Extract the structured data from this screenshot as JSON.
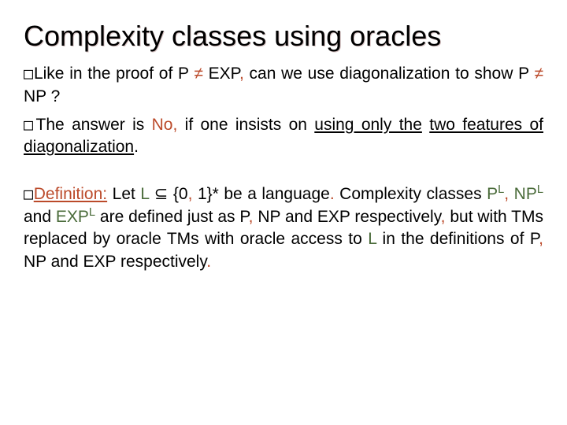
{
  "title": "Complexity classes using oracles",
  "p1": {
    "bullet": "□",
    "t1": "Like in the proof of P ",
    "neq1": "≠",
    "t2": " EXP",
    "comma1": ",",
    "t3": " can we use diagonalization to show P ",
    "neq2": "≠",
    "t4": " NP ?"
  },
  "p2": {
    "bullet": "□",
    "t1": "The answer is ",
    "no": "No",
    "comma": ",",
    "t2": " if one insists on ",
    "und1": "using only the",
    "t3": " ",
    "und2": "two features of diagonalization",
    "period": "."
  },
  "p3": {
    "bullet": "□",
    "def": "Definition:",
    "t1": " Let ",
    "L1": "L",
    "sub": " ⊆ {0",
    "comma1": ",",
    "sub2": " 1}* be a language",
    "period1": ".",
    "t2": " Complexity classes ",
    "PL": "P",
    "Lsup1": "L",
    "comma2": ",",
    "sp1": " ",
    "NPL": "NP",
    "Lsup2": "L",
    "and1": " and ",
    "EXPL": "EXP",
    "Lsup3": "L",
    "t3": " are defined just as P",
    "comma3": ",",
    "t4": " NP and EXP respectively",
    "comma4": ",",
    "t5": " but with TMs replaced by oracle TMs with oracle access to ",
    "L2": "L",
    "t6": " in the definitions of P",
    "comma5": ",",
    "t7": " NP and EXP respectively",
    "period2": "."
  },
  "colors": {
    "text": "#000000",
    "accent_red": "#bb4a2a",
    "accent_green": "#4a6b3a",
    "background": "#ffffff"
  },
  "fonts": {
    "title_size": 36,
    "body_size": 21
  }
}
